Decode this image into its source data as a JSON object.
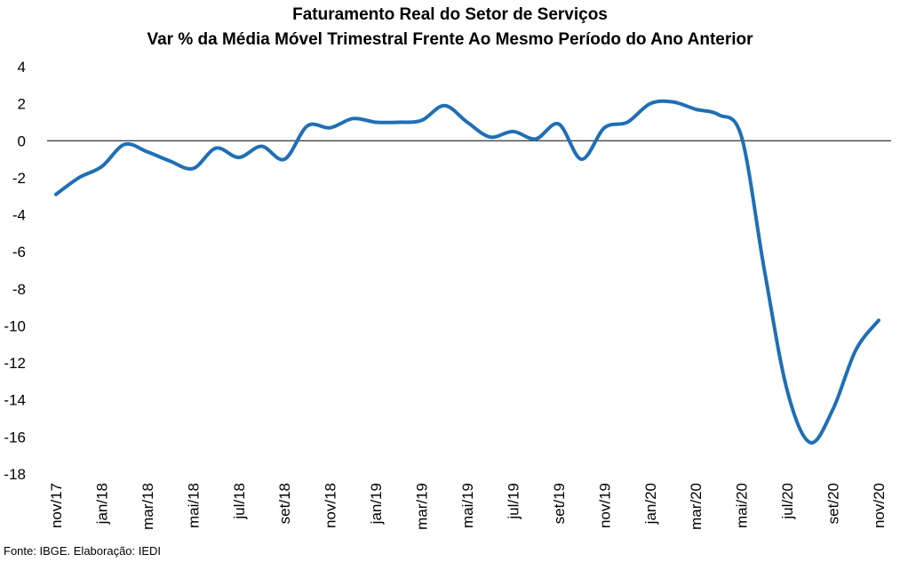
{
  "title": "Faturamento Real do Setor de Serviços",
  "subtitle": "Var % da Média Móvel Trimestral Frente Ao Mesmo Período do Ano Anterior",
  "source": "Fonte: IBGE. Elaboração: IEDI",
  "colors": {
    "line": "#1f6fb5",
    "zero_line": "#000000"
  },
  "chart_data": {
    "type": "line",
    "title": "Faturamento Real do Setor de Serviços",
    "subtitle": "Var % da Média Móvel Trimestral Frente Ao Mesmo Período do Ano Anterior",
    "ylim": [
      -18,
      4
    ],
    "yticks": [
      4,
      2,
      0,
      -2,
      -4,
      -6,
      -8,
      -10,
      -12,
      -14,
      -16,
      -18
    ],
    "x_tick_labels": [
      "nov/17",
      "jan/18",
      "mar/18",
      "mai/18",
      "jul/18",
      "set/18",
      "nov/18",
      "jan/19",
      "mar/19",
      "mai/19",
      "jul/19",
      "set/19",
      "nov/19",
      "jan/20",
      "mar/20",
      "mai/20",
      "jul/20",
      "set/20",
      "nov/20"
    ],
    "x": [
      "nov/17",
      "dez/17",
      "jan/18",
      "fev/18",
      "mar/18",
      "abr/18",
      "mai/18",
      "jun/18",
      "jul/18",
      "ago/18",
      "set/18",
      "out/18",
      "nov/18",
      "dez/18",
      "jan/19",
      "fev/19",
      "mar/19",
      "abr/19",
      "mai/19",
      "jun/19",
      "jul/19",
      "ago/19",
      "set/19",
      "out/19",
      "nov/19",
      "dez/19",
      "jan/20",
      "fev/20",
      "mar/20",
      "abr/20",
      "mai/20",
      "jun/20",
      "jul/20",
      "ago/20",
      "set/20",
      "out/20",
      "nov/20"
    ],
    "series": [
      {
        "values": [
          -2.9,
          -2.0,
          -1.4,
          -0.2,
          -0.6,
          -1.1,
          -1.5,
          -0.4,
          -0.9,
          -0.3,
          -1.0,
          0.8,
          0.7,
          1.2,
          1.0,
          1.0,
          1.1,
          1.9,
          1.0,
          0.2,
          0.5,
          0.1,
          0.9,
          -1.0,
          0.7,
          1.0,
          2.0,
          2.1,
          1.7,
          1.4,
          0.2,
          -7.0,
          -13.5,
          -16.3,
          -14.5,
          -11.3,
          -9.7
        ]
      }
    ],
    "grid": false,
    "legend": "none"
  }
}
